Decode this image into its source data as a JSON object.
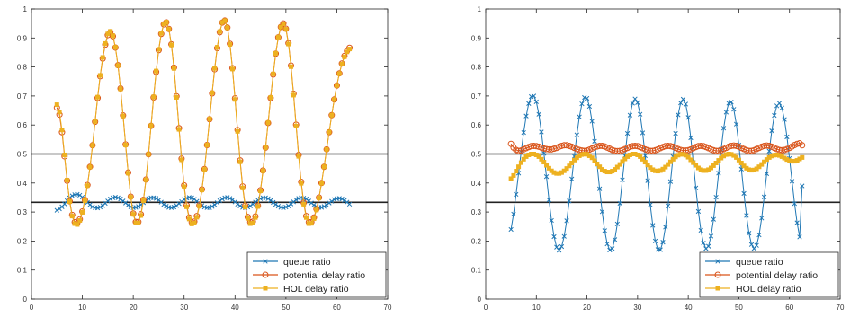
{
  "chart_data": [
    {
      "type": "line",
      "xlim": [
        0,
        70
      ],
      "ylim": [
        0,
        1
      ],
      "xticks": [
        "0",
        "10",
        "20",
        "30",
        "40",
        "50",
        "60",
        "70"
      ],
      "yticks": [
        "0",
        "0.1",
        "0.2",
        "0.3",
        "0.4",
        "0.5",
        "0.6",
        "0.7",
        "0.8",
        "0.9",
        "1"
      ],
      "grid": false,
      "legend_position": "bottom-right",
      "reference_lines": [
        0.5,
        0.3333
      ],
      "reference_color": "#222222",
      "x": [
        5,
        5.5,
        6,
        6.5,
        7,
        7.5,
        8,
        8.5,
        9,
        9.5,
        10,
        10.5,
        11,
        11.5,
        12,
        12.5,
        13,
        13.5,
        14,
        14.5,
        15,
        15.5,
        16,
        16.5,
        17,
        17.5,
        18,
        18.5,
        19,
        19.5,
        20,
        20.5,
        21,
        21.5,
        22,
        22.5,
        23,
        23.5,
        24,
        24.5,
        25,
        25.5,
        26,
        26.5,
        27,
        27.5,
        28,
        28.5,
        29,
        29.5,
        30,
        30.5,
        31,
        31.5,
        32,
        32.5,
        33,
        33.5,
        34,
        34.5,
        35,
        35.5,
        36,
        36.5,
        37,
        37.5,
        38,
        38.5,
        39,
        39.5,
        40,
        40.5,
        41,
        41.5,
        42,
        42.5,
        43,
        43.5,
        44,
        44.5,
        45,
        45.5,
        46,
        46.5,
        47,
        47.5,
        48,
        48.5,
        49,
        49.5,
        50,
        50.5,
        51,
        51.5,
        52,
        52.5,
        53,
        53.5,
        54,
        54.5,
        55,
        55.5,
        56,
        56.5,
        57,
        57.5,
        58,
        58.5,
        59,
        59.5,
        60,
        60.5,
        61,
        61.5,
        62,
        62.5
      ],
      "series": [
        {
          "name": "queue ratio",
          "color": "#1f77b4",
          "marker": "x",
          "values": [
            0.306,
            0.311,
            0.318,
            0.328,
            0.339,
            0.349,
            0.356,
            0.36,
            0.361,
            0.358,
            0.351,
            0.342,
            0.333,
            0.325,
            0.318,
            0.315,
            0.314,
            0.317,
            0.322,
            0.33,
            0.338,
            0.345,
            0.349,
            0.351,
            0.349,
            0.345,
            0.338,
            0.331,
            0.324,
            0.318,
            0.315,
            0.316,
            0.319,
            0.325,
            0.332,
            0.34,
            0.346,
            0.349,
            0.349,
            0.347,
            0.341,
            0.334,
            0.326,
            0.32,
            0.316,
            0.315,
            0.317,
            0.322,
            0.329,
            0.336,
            0.343,
            0.348,
            0.35,
            0.349,
            0.344,
            0.337,
            0.33,
            0.322,
            0.317,
            0.315,
            0.315,
            0.319,
            0.325,
            0.332,
            0.339,
            0.345,
            0.349,
            0.35,
            0.347,
            0.342,
            0.335,
            0.327,
            0.321,
            0.316,
            0.315,
            0.317,
            0.321,
            0.327,
            0.334,
            0.341,
            0.346,
            0.349,
            0.349,
            0.346,
            0.34,
            0.333,
            0.326,
            0.32,
            0.316,
            0.315,
            0.317,
            0.321,
            0.328,
            0.335,
            0.342,
            0.347,
            0.349,
            0.348,
            0.345,
            0.338,
            0.331,
            0.324,
            0.319,
            0.316,
            0.316,
            0.319,
            0.324,
            0.331,
            0.337,
            0.343,
            0.346,
            0.347,
            0.345,
            0.34,
            0.334,
            0.327
          ]
        },
        {
          "name": "potential delay ratio",
          "color": "#d95319",
          "marker": "o",
          "values": [
            0.66,
            0.636,
            0.575,
            0.492,
            0.408,
            0.337,
            0.29,
            0.265,
            0.262,
            0.275,
            0.302,
            0.342,
            0.393,
            0.456,
            0.53,
            0.611,
            0.693,
            0.768,
            0.829,
            0.877,
            0.91,
            0.92,
            0.906,
            0.867,
            0.806,
            0.726,
            0.633,
            0.533,
            0.436,
            0.353,
            0.295,
            0.266,
            0.266,
            0.292,
            0.342,
            0.412,
            0.499,
            0.597,
            0.695,
            0.783,
            0.858,
            0.914,
            0.947,
            0.954,
            0.931,
            0.878,
            0.798,
            0.699,
            0.589,
            0.484,
            0.392,
            0.323,
            0.281,
            0.264,
            0.267,
            0.286,
            0.323,
            0.378,
            0.448,
            0.531,
            0.62,
            0.709,
            0.792,
            0.865,
            0.92,
            0.953,
            0.96,
            0.936,
            0.88,
            0.796,
            0.692,
            0.583,
            0.478,
            0.388,
            0.322,
            0.283,
            0.265,
            0.267,
            0.285,
            0.322,
            0.375,
            0.443,
            0.522,
            0.607,
            0.693,
            0.774,
            0.846,
            0.902,
            0.938,
            0.95,
            0.932,
            0.882,
            0.805,
            0.708,
            0.601,
            0.497,
            0.404,
            0.332,
            0.286,
            0.265,
            0.265,
            0.281,
            0.31,
            0.35,
            0.4,
            0.456,
            0.516,
            0.575,
            0.634,
            0.688,
            0.736,
            0.778,
            0.812,
            0.838,
            0.855,
            0.866
          ]
        },
        {
          "name": "HOL delay ratio",
          "color": "#edb120",
          "marker": "square",
          "values": [
            0.67,
            0.645,
            0.583,
            0.497,
            0.41,
            0.336,
            0.286,
            0.26,
            0.257,
            0.271,
            0.299,
            0.339,
            0.391,
            0.455,
            0.53,
            0.612,
            0.696,
            0.771,
            0.833,
            0.881,
            0.914,
            0.923,
            0.908,
            0.868,
            0.805,
            0.724,
            0.631,
            0.531,
            0.434,
            0.351,
            0.292,
            0.262,
            0.262,
            0.288,
            0.339,
            0.411,
            0.499,
            0.598,
            0.697,
            0.786,
            0.861,
            0.916,
            0.949,
            0.955,
            0.93,
            0.876,
            0.795,
            0.695,
            0.585,
            0.48,
            0.387,
            0.318,
            0.276,
            0.259,
            0.262,
            0.282,
            0.32,
            0.376,
            0.447,
            0.531,
            0.621,
            0.711,
            0.795,
            0.868,
            0.922,
            0.954,
            0.96,
            0.935,
            0.878,
            0.793,
            0.688,
            0.578,
            0.473,
            0.383,
            0.317,
            0.278,
            0.26,
            0.262,
            0.281,
            0.319,
            0.373,
            0.442,
            0.522,
            0.608,
            0.695,
            0.776,
            0.847,
            0.903,
            0.938,
            0.949,
            0.93,
            0.879,
            0.801,
            0.703,
            0.596,
            0.492,
            0.399,
            0.327,
            0.281,
            0.26,
            0.261,
            0.277,
            0.307,
            0.348,
            0.399,
            0.456,
            0.516,
            0.576,
            0.634,
            0.688,
            0.736,
            0.777,
            0.81,
            0.835,
            0.852,
            0.862
          ]
        }
      ]
    },
    {
      "type": "line",
      "xlim": [
        0,
        70
      ],
      "ylim": [
        0,
        1
      ],
      "xticks": [
        "0",
        "10",
        "20",
        "30",
        "40",
        "50",
        "60",
        "70"
      ],
      "yticks": [
        "0",
        "0.1",
        "0.2",
        "0.3",
        "0.4",
        "0.5",
        "0.6",
        "0.7",
        "0.8",
        "0.9",
        "1"
      ],
      "grid": false,
      "legend_position": "bottom-right",
      "reference_lines": [
        0.5,
        0.3333
      ],
      "reference_color": "#222222",
      "x": [
        5,
        5.5,
        6,
        6.5,
        7,
        7.5,
        8,
        8.5,
        9,
        9.5,
        10,
        10.5,
        11,
        11.5,
        12,
        12.5,
        13,
        13.5,
        14,
        14.5,
        15,
        15.5,
        16,
        16.5,
        17,
        17.5,
        18,
        18.5,
        19,
        19.5,
        20,
        20.5,
        21,
        21.5,
        22,
        22.5,
        23,
        23.5,
        24,
        24.5,
        25,
        25.5,
        26,
        26.5,
        27,
        27.5,
        28,
        28.5,
        29,
        29.5,
        30,
        30.5,
        31,
        31.5,
        32,
        32.5,
        33,
        33.5,
        34,
        34.5,
        35,
        35.5,
        36,
        36.5,
        37,
        37.5,
        38,
        38.5,
        39,
        39.5,
        40,
        40.5,
        41,
        41.5,
        42,
        42.5,
        43,
        43.5,
        44,
        44.5,
        45,
        45.5,
        46,
        46.5,
        47,
        47.5,
        48,
        48.5,
        49,
        49.5,
        50,
        50.5,
        51,
        51.5,
        52,
        52.5,
        53,
        53.5,
        54,
        54.5,
        55,
        55.5,
        56,
        56.5,
        57,
        57.5,
        58,
        58.5,
        59,
        59.5,
        60,
        60.5,
        61,
        61.5,
        62,
        62.5
      ],
      "series": [
        {
          "name": "queue ratio",
          "color": "#1f77b4",
          "marker": "x",
          "values": [
            0.24,
            0.293,
            0.361,
            0.434,
            0.507,
            0.574,
            0.631,
            0.674,
            0.698,
            0.7,
            0.68,
            0.637,
            0.576,
            0.502,
            0.422,
            0.342,
            0.271,
            0.215,
            0.179,
            0.168,
            0.181,
            0.216,
            0.27,
            0.338,
            0.414,
            0.492,
            0.566,
            0.628,
            0.673,
            0.695,
            0.692,
            0.664,
            0.613,
            0.544,
            0.464,
            0.38,
            0.301,
            0.236,
            0.19,
            0.169,
            0.174,
            0.205,
            0.259,
            0.33,
            0.411,
            0.494,
            0.571,
            0.634,
            0.675,
            0.69,
            0.677,
            0.637,
            0.573,
            0.494,
            0.408,
            0.325,
            0.254,
            0.2,
            0.171,
            0.17,
            0.196,
            0.248,
            0.321,
            0.405,
            0.491,
            0.571,
            0.635,
            0.676,
            0.689,
            0.672,
            0.626,
            0.556,
            0.471,
            0.383,
            0.302,
            0.237,
            0.193,
            0.174,
            0.182,
            0.217,
            0.275,
            0.351,
            0.434,
            0.516,
            0.589,
            0.644,
            0.675,
            0.679,
            0.654,
            0.603,
            0.531,
            0.448,
            0.364,
            0.288,
            0.227,
            0.188,
            0.174,
            0.185,
            0.221,
            0.279,
            0.352,
            0.432,
            0.51,
            0.58,
            0.633,
            0.666,
            0.675,
            0.659,
            0.619,
            0.559,
            0.485,
            0.406,
            0.329,
            0.263,
            0.214,
            0.39
          ]
        },
        {
          "name": "potential delay ratio",
          "color": "#d95319",
          "marker": "o",
          "values": [
            0.535,
            0.522,
            0.514,
            0.511,
            0.512,
            0.516,
            0.52,
            0.524,
            0.527,
            0.528,
            0.527,
            0.525,
            0.522,
            0.519,
            0.517,
            0.516,
            0.516,
            0.518,
            0.521,
            0.525,
            0.528,
            0.53,
            0.53,
            0.528,
            0.525,
            0.521,
            0.517,
            0.514,
            0.512,
            0.511,
            0.512,
            0.515,
            0.519,
            0.523,
            0.526,
            0.528,
            0.528,
            0.526,
            0.522,
            0.518,
            0.514,
            0.511,
            0.51,
            0.511,
            0.513,
            0.517,
            0.521,
            0.525,
            0.527,
            0.528,
            0.527,
            0.524,
            0.52,
            0.516,
            0.513,
            0.511,
            0.511,
            0.513,
            0.516,
            0.52,
            0.524,
            0.527,
            0.528,
            0.527,
            0.525,
            0.521,
            0.517,
            0.514,
            0.512,
            0.512,
            0.513,
            0.516,
            0.52,
            0.524,
            0.527,
            0.528,
            0.527,
            0.524,
            0.52,
            0.516,
            0.513,
            0.511,
            0.511,
            0.513,
            0.517,
            0.521,
            0.525,
            0.528,
            0.529,
            0.528,
            0.525,
            0.521,
            0.517,
            0.513,
            0.511,
            0.511,
            0.513,
            0.517,
            0.521,
            0.525,
            0.528,
            0.529,
            0.528,
            0.525,
            0.521,
            0.517,
            0.514,
            0.513,
            0.514,
            0.517,
            0.521,
            0.526,
            0.531,
            0.535,
            0.537,
            0.53
          ]
        },
        {
          "name": "HOL delay ratio",
          "color": "#edb120",
          "marker": "square",
          "values": [
            0.415,
            0.426,
            0.441,
            0.456,
            0.47,
            0.482,
            0.491,
            0.497,
            0.5,
            0.5,
            0.497,
            0.491,
            0.482,
            0.472,
            0.461,
            0.451,
            0.442,
            0.436,
            0.433,
            0.433,
            0.436,
            0.442,
            0.45,
            0.459,
            0.469,
            0.479,
            0.487,
            0.494,
            0.498,
            0.5,
            0.499,
            0.494,
            0.487,
            0.477,
            0.466,
            0.456,
            0.447,
            0.441,
            0.438,
            0.438,
            0.441,
            0.447,
            0.455,
            0.464,
            0.474,
            0.483,
            0.491,
            0.497,
            0.5,
            0.5,
            0.497,
            0.491,
            0.482,
            0.472,
            0.462,
            0.453,
            0.446,
            0.442,
            0.441,
            0.443,
            0.448,
            0.455,
            0.464,
            0.473,
            0.482,
            0.49,
            0.496,
            0.499,
            0.499,
            0.496,
            0.489,
            0.48,
            0.47,
            0.461,
            0.452,
            0.446,
            0.443,
            0.443,
            0.446,
            0.452,
            0.46,
            0.469,
            0.478,
            0.486,
            0.493,
            0.498,
            0.5,
            0.499,
            0.495,
            0.488,
            0.479,
            0.469,
            0.459,
            0.451,
            0.446,
            0.444,
            0.445,
            0.449,
            0.456,
            0.464,
            0.473,
            0.481,
            0.488,
            0.493,
            0.496,
            0.497,
            0.495,
            0.491,
            0.486,
            0.481,
            0.477,
            0.475,
            0.475,
            0.478,
            0.483,
            0.488
          ]
        }
      ]
    }
  ]
}
